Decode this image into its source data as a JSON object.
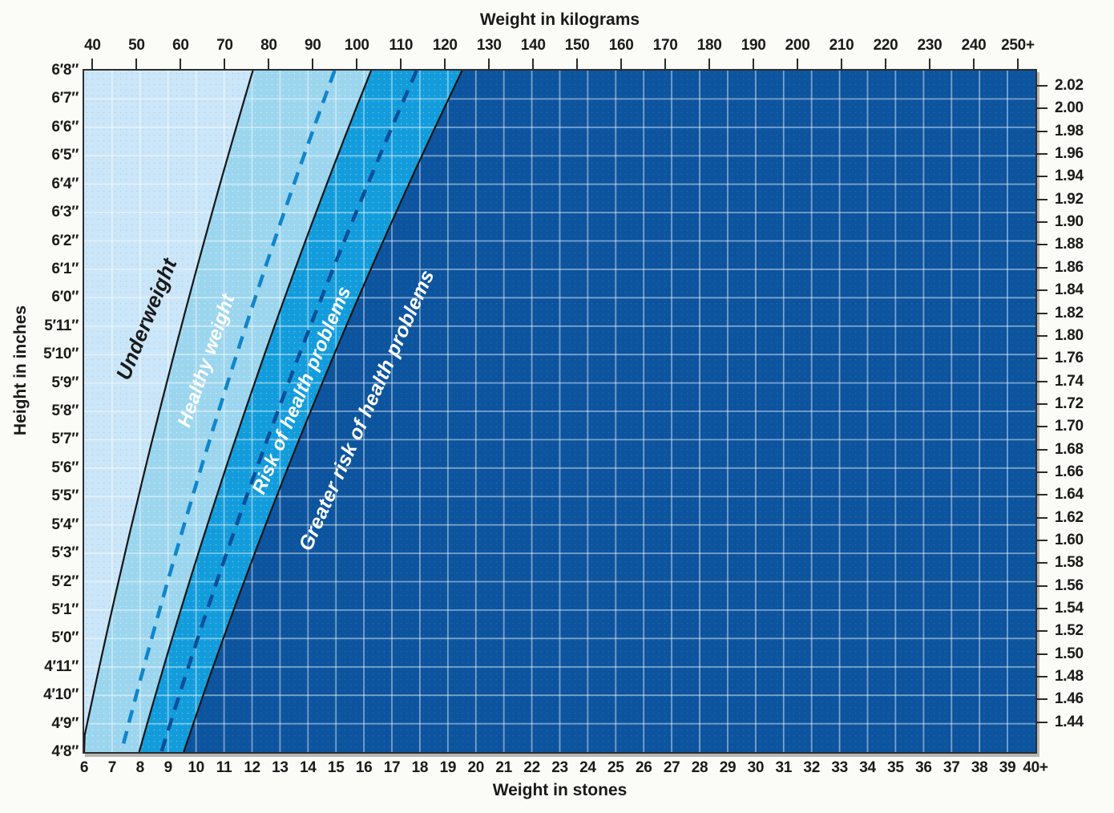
{
  "chart_data": {
    "type": "area",
    "description": "BMI weight-for-height chart with colored risk zones",
    "x_top": {
      "title": "Weight in kilograms",
      "unit": "kg",
      "tick_labels": [
        "40",
        "50",
        "60",
        "70",
        "80",
        "90",
        "100",
        "110",
        "120",
        "130",
        "140",
        "150",
        "160",
        "170",
        "180",
        "190",
        "200",
        "210",
        "220",
        "230",
        "240",
        "250+"
      ],
      "tick_values": [
        40,
        50,
        60,
        70,
        80,
        90,
        100,
        110,
        120,
        130,
        140,
        150,
        160,
        170,
        180,
        190,
        200,
        210,
        220,
        230,
        240,
        250
      ],
      "range_kg": [
        38.1,
        254.0
      ]
    },
    "x_bottom": {
      "title": "Weight in stones",
      "unit": "stones",
      "tick_labels": [
        "6",
        "7",
        "8",
        "9",
        "10",
        "11",
        "12",
        "13",
        "14",
        "15",
        "16",
        "17",
        "18",
        "19",
        "20",
        "21",
        "22",
        "23",
        "24",
        "25",
        "26",
        "27",
        "28",
        "29",
        "30",
        "31",
        "32",
        "33",
        "34",
        "35",
        "36",
        "37",
        "38",
        "39",
        "40+"
      ],
      "tick_values": [
        6,
        7,
        8,
        9,
        10,
        11,
        12,
        13,
        14,
        15,
        16,
        17,
        18,
        19,
        20,
        21,
        22,
        23,
        24,
        25,
        26,
        27,
        28,
        29,
        30,
        31,
        32,
        33,
        34,
        35,
        36,
        37,
        38,
        39,
        40
      ],
      "range_stones": [
        6,
        40
      ]
    },
    "y_left": {
      "title": "Height in inches",
      "tick_labels": [
        "6′8″",
        "6′7″",
        "6′6″",
        "6′5″",
        "6′4″",
        "6′3″",
        "6′2″",
        "6′1″",
        "6′0″",
        "5′11″",
        "5′10″",
        "5′9″",
        "5′8″",
        "5′7″",
        "5′6″",
        "5′5″",
        "5′4″",
        "5′3″",
        "5′2″",
        "5′1″",
        "5′0″",
        "4′11″",
        "4′10″",
        "4′9″",
        "4′8″"
      ],
      "range_inches": [
        56,
        80
      ]
    },
    "y_right": {
      "unit": "meters",
      "tick_labels": [
        "2.02",
        "2.00",
        "1.98",
        "1.96",
        "1.94",
        "1.92",
        "1.90",
        "1.88",
        "1.86",
        "1.84",
        "1.82",
        "1.80",
        "1.76",
        "1.74",
        "1.72",
        "1.70",
        "1.68",
        "1.66",
        "1.64",
        "1.62",
        "1.60",
        "1.58",
        "1.56",
        "1.54",
        "1.52",
        "1.50",
        "1.48",
        "1.46",
        "1.44"
      ]
    },
    "zones": [
      {
        "label": "Underweight",
        "bmi_min": null,
        "bmi_max": 18.5,
        "color": "#cbe6f8",
        "text_color": "#1a1a1a"
      },
      {
        "label": "Healthy weight",
        "bmi_min": 18.5,
        "bmi_max": 25,
        "color": "#9bd5ee",
        "text_color": "#ffffff"
      },
      {
        "label": "Risk of health problems",
        "bmi_min": 25,
        "bmi_max": 30,
        "color": "#129cdb",
        "text_color": "#ffffff"
      },
      {
        "label": "Greater risk of health problems",
        "bmi_min": 30,
        "bmi_max": null,
        "color": "#0d549e",
        "text_color": "#ffffff"
      }
    ],
    "boundary_bmis": [
      18.5,
      25,
      30
    ],
    "dashed_lines": [
      {
        "bmi": 23,
        "color": "#0f86cc"
      },
      {
        "bmi": 27.5,
        "color": "#0b4f9a"
      }
    ],
    "grid": {
      "on": true,
      "x_step": "1 stone",
      "y_step": "1 inch",
      "color": "rgba(255,255,255,0.45)"
    },
    "style_colors": {
      "background": "#fbfbf7",
      "boundary_line": "#141414",
      "axis_text": "#1a1a1a",
      "border": "#2e2e2e"
    }
  }
}
